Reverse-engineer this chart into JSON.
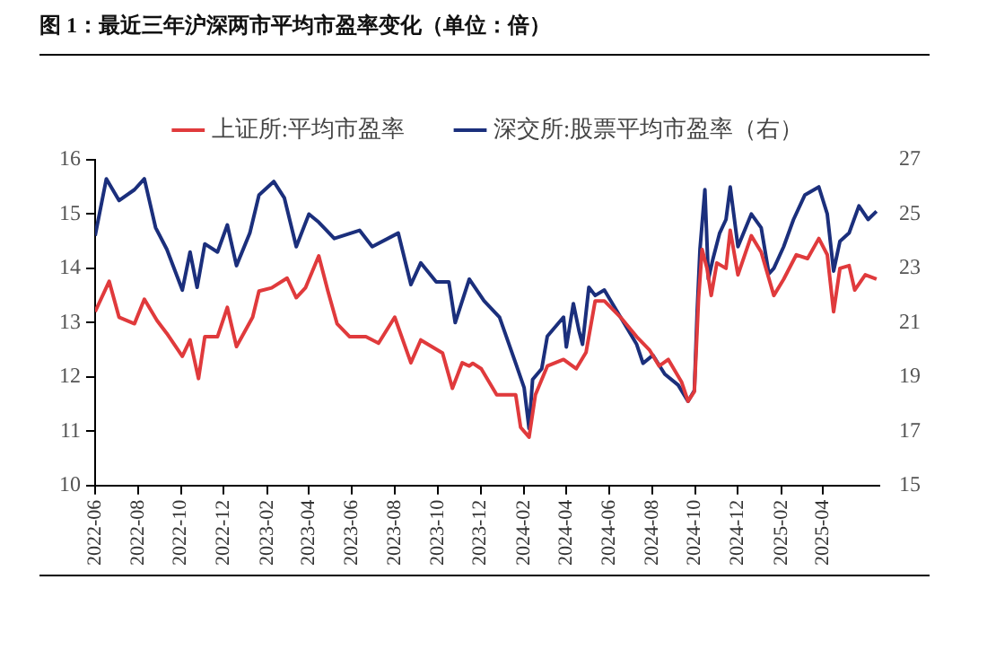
{
  "chart_data": {
    "type": "line",
    "title": "图 1：最近三年沪深两市平均市盈率变化（单位：倍）",
    "legend": "top",
    "grid": false,
    "marker": "none",
    "line_style": "solid",
    "xlim": [
      "2022-06-01",
      "2025-06-20"
    ],
    "xticks": [
      "2022-06",
      "2022-08",
      "2022-10",
      "2022-12",
      "2023-02",
      "2023-04",
      "2023-06",
      "2023-08",
      "2023-10",
      "2023-12",
      "2024-02",
      "2024-04",
      "2024-06",
      "2024-08",
      "2024-10",
      "2024-12",
      "2025-02",
      "2025-04"
    ],
    "ylim": [
      10,
      16
    ],
    "yticks": [
      10,
      11,
      12,
      13,
      14,
      15,
      16
    ],
    "y2lim": [
      15,
      27
    ],
    "y2ticks": [
      15,
      17,
      19,
      21,
      23,
      25,
      27
    ],
    "series": [
      {
        "name": "上证所:平均市盈率",
        "color": "#e03a3c",
        "x": [
          "2022-06-01",
          "2022-06-21",
          "2022-07-05",
          "2022-07-27",
          "2022-08-10",
          "2022-08-28",
          "2022-09-11",
          "2022-10-03",
          "2022-10-14",
          "2022-10-26",
          "2022-11-04",
          "2022-11-22",
          "2022-12-06",
          "2022-12-19",
          "2023-01-11",
          "2023-01-20",
          "2023-02-07",
          "2023-03-01",
          "2023-03-14",
          "2023-03-27",
          "2023-04-15",
          "2023-04-28",
          "2023-05-11",
          "2023-05-29",
          "2023-06-21",
          "2023-07-09",
          "2023-08-01",
          "2023-08-24",
          "2023-09-07",
          "2023-10-08",
          "2023-10-22",
          "2023-11-05",
          "2023-11-15",
          "2023-11-20",
          "2023-12-02",
          "2023-12-24",
          "2024-01-20",
          "2024-01-27",
          "2024-02-08",
          "2024-02-17",
          "2024-03-05",
          "2024-03-28",
          "2024-04-15",
          "2024-04-29",
          "2024-05-12",
          "2024-05-25",
          "2024-06-17",
          "2024-07-10",
          "2024-07-28",
          "2024-08-11",
          "2024-08-24",
          "2024-09-12",
          "2024-09-21",
          "2024-09-30",
          "2024-10-06",
          "2024-10-11",
          "2024-10-18",
          "2024-10-24",
          "2024-11-01",
          "2024-11-14",
          "2024-11-20",
          "2024-12-01",
          "2024-12-20",
          "2025-01-03",
          "2025-01-21",
          "2025-02-04",
          "2025-02-22",
          "2025-03-10",
          "2025-03-26",
          "2025-04-07",
          "2025-04-16",
          "2025-04-25",
          "2025-05-08",
          "2025-05-16",
          "2025-05-31",
          "2025-06-16"
        ],
        "values": [
          13.2,
          13.76,
          13.1,
          12.98,
          13.43,
          13.04,
          12.8,
          12.38,
          12.68,
          11.97,
          12.74,
          12.74,
          13.28,
          12.56,
          13.1,
          13.58,
          13.64,
          13.82,
          13.46,
          13.64,
          14.23,
          13.58,
          12.98,
          12.74,
          12.74,
          12.62,
          13.1,
          12.26,
          12.68,
          12.44,
          11.79,
          12.26,
          12.2,
          12.25,
          12.15,
          11.67,
          11.67,
          11.07,
          10.89,
          11.67,
          12.2,
          12.32,
          12.15,
          12.45,
          13.4,
          13.4,
          13.1,
          12.74,
          12.5,
          12.2,
          12.32,
          11.9,
          11.55,
          11.73,
          13.45,
          14.35,
          14.0,
          13.5,
          14.1,
          14.0,
          14.7,
          13.88,
          14.6,
          14.3,
          13.5,
          13.8,
          14.25,
          14.18,
          14.55,
          14.25,
          13.2,
          14.0,
          14.05,
          13.6,
          13.88,
          13.8
        ]
      },
      {
        "name": "深交所:股票平均市盈率（右）",
        "color": "#1b2f7c",
        "axis": "y2",
        "x": [
          "2022-06-01",
          "2022-06-17",
          "2022-07-05",
          "2022-07-27",
          "2022-08-10",
          "2022-08-26",
          "2022-09-11",
          "2022-10-03",
          "2022-10-14",
          "2022-10-24",
          "2022-11-04",
          "2022-11-22",
          "2022-12-06",
          "2022-12-19",
          "2023-01-07",
          "2023-01-20",
          "2023-02-10",
          "2023-02-25",
          "2023-03-14",
          "2023-04-01",
          "2023-04-15",
          "2023-05-07",
          "2023-06-12",
          "2023-06-30",
          "2023-08-06",
          "2023-08-24",
          "2023-09-07",
          "2023-09-29",
          "2023-10-17",
          "2023-10-26",
          "2023-11-15",
          "2023-12-06",
          "2023-12-28",
          "2024-01-20",
          "2024-02-01",
          "2024-02-08",
          "2024-02-13",
          "2024-02-26",
          "2024-03-05",
          "2024-03-28",
          "2024-04-01",
          "2024-04-11",
          "2024-04-19",
          "2024-04-24",
          "2024-05-03",
          "2024-05-12",
          "2024-05-25",
          "2024-06-17",
          "2024-07-10",
          "2024-07-19",
          "2024-08-02",
          "2024-08-19",
          "2024-09-07",
          "2024-09-21",
          "2024-09-30",
          "2024-10-04",
          "2024-10-08",
          "2024-10-15",
          "2024-10-20",
          "2024-10-26",
          "2024-11-05",
          "2024-11-14",
          "2024-11-20",
          "2024-12-01",
          "2024-12-20",
          "2025-01-03",
          "2025-01-14",
          "2025-01-21",
          "2025-02-04",
          "2025-02-18",
          "2025-03-06",
          "2025-03-26",
          "2025-04-07",
          "2025-04-16",
          "2025-04-25",
          "2025-05-08",
          "2025-05-22",
          "2025-06-04",
          "2025-06-16"
        ],
        "values": [
          24.2,
          26.3,
          25.5,
          25.9,
          26.3,
          24.5,
          23.7,
          22.2,
          23.6,
          22.3,
          23.9,
          23.6,
          24.6,
          23.1,
          24.3,
          25.7,
          26.2,
          25.6,
          23.8,
          25.0,
          24.7,
          24.1,
          24.4,
          23.8,
          24.3,
          22.4,
          23.2,
          22.5,
          22.5,
          21.0,
          22.6,
          21.8,
          21.2,
          19.5,
          18.6,
          17.1,
          18.9,
          19.3,
          20.5,
          21.2,
          20.1,
          21.7,
          20.7,
          20.2,
          22.3,
          22.0,
          22.2,
          21.2,
          20.2,
          19.5,
          19.8,
          19.1,
          18.7,
          18.1,
          18.5,
          21.4,
          23.7,
          25.9,
          22.6,
          23.3,
          24.3,
          24.8,
          26.0,
          23.8,
          25.0,
          24.5,
          22.8,
          23.0,
          23.8,
          24.8,
          25.7,
          26.0,
          25.0,
          22.9,
          24.0,
          24.3,
          25.3,
          24.8,
          25.1
        ]
      }
    ]
  }
}
